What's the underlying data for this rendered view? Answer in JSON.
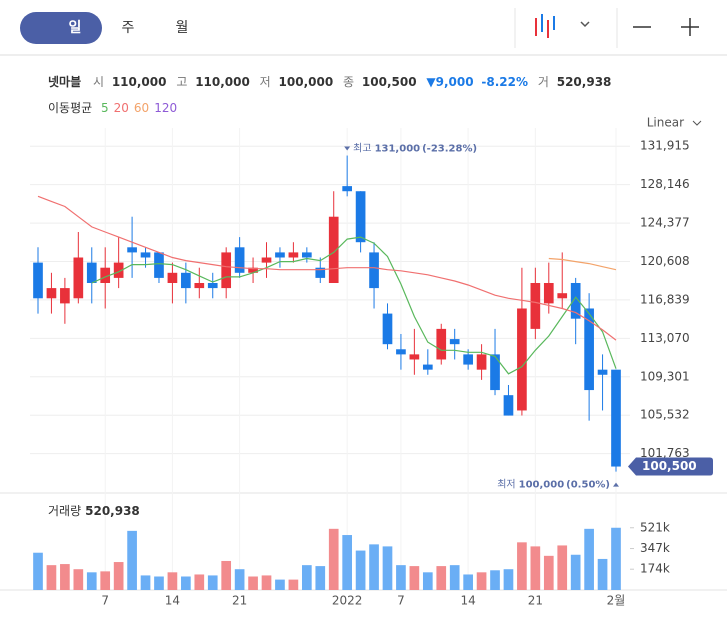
{
  "header": {
    "tabs": [
      "일",
      "주",
      "월"
    ],
    "scale": "Linear",
    "stock": "넷마블",
    "quote": [
      {
        "label": "시",
        "value": "110,000"
      },
      {
        "label": "고",
        "value": "110,000"
      },
      {
        "label": "저",
        "value": "100,000"
      },
      {
        "label": "종",
        "value": "100,500"
      }
    ],
    "change": "▼9,000",
    "change_pct": "-8.22%",
    "volume_label": "거",
    "volume": "520,938"
  },
  "chart_data": {
    "type": "candlestick",
    "categories": [
      null,
      null,
      null,
      null,
      null,
      "7",
      null,
      null,
      null,
      null,
      "14",
      null,
      null,
      null,
      null,
      "21",
      null,
      null,
      null,
      null,
      null,
      null,
      null,
      "2022",
      null,
      null,
      null,
      "7",
      null,
      null,
      null,
      null,
      "14",
      null,
      null,
      null,
      null,
      "21",
      null,
      null,
      null,
      null,
      null,
      "2월"
    ],
    "open": [
      120500,
      117000,
      116500,
      117000,
      120500,
      118500,
      119000,
      122000,
      121500,
      121500,
      118500,
      119500,
      118000,
      118500,
      118000,
      122000,
      119500,
      120500,
      121500,
      121000,
      121500,
      120000,
      118500,
      128000,
      127500,
      121500,
      115500,
      112000,
      111000,
      110500,
      111000,
      113000,
      111500,
      110000,
      111500,
      107500,
      106000,
      114000,
      116500,
      117000,
      118500,
      116000,
      110000,
      110000
    ],
    "high": [
      122000,
      119500,
      119000,
      123500,
      122000,
      122000,
      123000,
      125000,
      122000,
      121500,
      120500,
      120500,
      120000,
      119500,
      122000,
      123000,
      121000,
      122500,
      122000,
      122500,
      122000,
      121000,
      127500,
      131000,
      127500,
      122500,
      116500,
      113500,
      114000,
      112000,
      114500,
      114000,
      112000,
      112500,
      114000,
      108500,
      120000,
      120000,
      120500,
      121500,
      119000,
      117500,
      111500,
      110000
    ],
    "low": [
      115500,
      115500,
      114500,
      116500,
      116500,
      116000,
      118000,
      119000,
      120000,
      118500,
      116500,
      116500,
      117000,
      117000,
      117000,
      119000,
      118500,
      119000,
      120000,
      120500,
      120500,
      118500,
      118500,
      127000,
      121500,
      116000,
      112000,
      110000,
      109500,
      109500,
      110500,
      111000,
      110000,
      109000,
      107500,
      105500,
      105500,
      113000,
      115500,
      116000,
      112500,
      105000,
      106000,
      100000
    ],
    "close": [
      117000,
      118000,
      118000,
      121000,
      118500,
      120000,
      120500,
      121500,
      121000,
      119000,
      119500,
      118000,
      118500,
      118000,
      121500,
      119500,
      120000,
      121000,
      121000,
      121500,
      121000,
      119000,
      125000,
      127500,
      122500,
      118000,
      112500,
      111500,
      111500,
      110000,
      114000,
      112500,
      110500,
      111500,
      108000,
      105500,
      116000,
      118500,
      118500,
      117500,
      115000,
      108000,
      109500,
      100500
    ],
    "up_color": "#e8313a",
    "down_color": "#1b7ae6",
    "ylim": [
      98200,
      133700
    ],
    "yticks": [
      {
        "value": 101763,
        "label": "101,763"
      },
      {
        "value": 105532,
        "label": "105,532"
      },
      {
        "value": 109301,
        "label": "109,301"
      },
      {
        "value": 113070,
        "label": "113,070"
      },
      {
        "value": 116839,
        "label": "116,839"
      },
      {
        "value": 120608,
        "label": "120,608"
      },
      {
        "value": 124377,
        "label": "124,377"
      },
      {
        "value": 128146,
        "label": "128,146"
      },
      {
        "value": 131915,
        "label": "131,915"
      }
    ],
    "grid": true,
    "ma_title": "이동평균",
    "series": [
      {
        "name": "5",
        "color": "#59b85c",
        "values": [
          null,
          null,
          null,
          null,
          118500,
          119100,
          119600,
          120300,
          120300,
          120400,
          120300,
          119800,
          119200,
          118600,
          119100,
          119100,
          119500,
          120000,
          120600,
          120600,
          120900,
          120700,
          121500,
          122800,
          123000,
          122400,
          121100,
          118400,
          115200,
          112700,
          111900,
          111900,
          111700,
          111700,
          111300,
          109600,
          110300,
          111900,
          113300,
          115200,
          117100,
          115500,
          113700,
          110100
        ]
      },
      {
        "name": "20",
        "color": "#f07070",
        "values": [
          127000,
          126500,
          126000,
          125000,
          124000,
          123500,
          123000,
          122500,
          122000,
          121500,
          121000,
          120700,
          120500,
          120300,
          120100,
          120000,
          119900,
          119900,
          119800,
          119800,
          119800,
          119800,
          119900,
          120000,
          120000,
          120000,
          119800,
          119700,
          119500,
          119300,
          119000,
          118700,
          118300,
          117800,
          117300,
          117000,
          116800,
          116600,
          116300,
          116000,
          115600,
          114800,
          113900,
          112900
        ]
      },
      {
        "name": "60",
        "color": "#f3a36a",
        "values": [
          null,
          null,
          null,
          null,
          null,
          null,
          null,
          null,
          null,
          null,
          null,
          null,
          null,
          null,
          null,
          null,
          null,
          null,
          null,
          null,
          null,
          null,
          null,
          null,
          null,
          null,
          null,
          null,
          null,
          null,
          null,
          null,
          null,
          null,
          null,
          null,
          null,
          null,
          120900,
          120800,
          120600,
          120400,
          120100,
          119800
        ]
      },
      {
        "name": "120",
        "color": "#8e5bd6",
        "values": [
          null,
          null,
          null,
          null,
          null,
          null,
          null,
          null,
          null,
          null,
          null,
          null,
          null,
          null,
          null,
          null,
          null,
          null,
          null,
          null,
          null,
          null,
          null,
          null,
          null,
          null,
          null,
          null,
          null,
          null,
          null,
          null,
          null,
          null,
          null,
          null,
          null,
          null,
          null,
          null,
          null,
          null,
          null,
          null
        ]
      }
    ],
    "high_annotation": {
      "label": "최고",
      "value": 131000,
      "value_label": "131,000",
      "change": "(-23.28%)"
    },
    "low_annotation": {
      "label": "최저",
      "value": 100000,
      "value_label": "100,000",
      "change": "(0.50%)"
    },
    "last": {
      "value": 100500,
      "label": "100,500"
    },
    "volume": {
      "title": "거래량",
      "value_label": "520,938",
      "values": [
        312000,
        208000,
        217000,
        174000,
        148000,
        156000,
        234000,
        495000,
        122000,
        113000,
        148000,
        113000,
        130000,
        122000,
        243000,
        174000,
        113000,
        122000,
        87000,
        87000,
        208000,
        200000,
        512000,
        460000,
        330000,
        382000,
        365000,
        208000,
        200000,
        148000,
        200000,
        208000,
        130000,
        148000,
        165000,
        174000,
        399000,
        365000,
        286000,
        373000,
        295000,
        512000,
        260000,
        520938
      ],
      "up_color": "#f28b8d",
      "down_color": "#6aaef5",
      "ylim": [
        0,
        770000
      ],
      "yticks": [
        {
          "value": 174000,
          "label": "174k"
        },
        {
          "value": 347000,
          "label": "347k"
        },
        {
          "value": 521000,
          "label": "521k"
        }
      ]
    }
  }
}
